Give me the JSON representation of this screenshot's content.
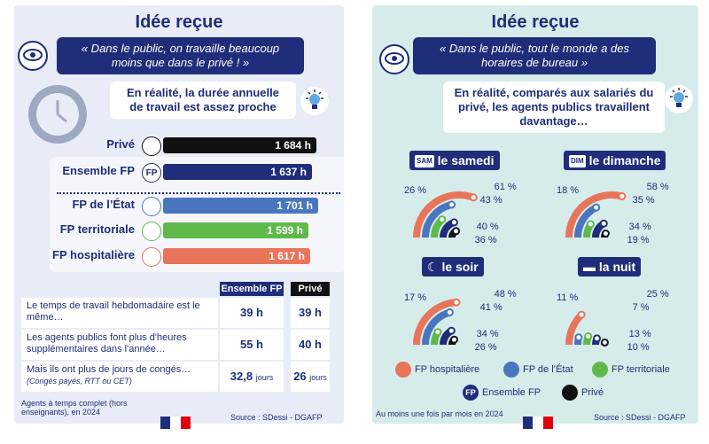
{
  "colors": {
    "navy": "#1f2d7a",
    "hospitaliere": "#e8755a",
    "etat": "#4a76c0",
    "territoriale": "#5fb94a",
    "ensemble": "#1f2d7a",
    "prive": "#111111"
  },
  "left": {
    "title": "Idée reçue",
    "quote": "« Dans le public, on travaille beaucoup moins que dans le privé ! »",
    "reality": "En réalité, la durée annuelle de travail est assez proche",
    "bars": [
      {
        "label": "Privé",
        "value": "1 684 h",
        "hours": 1684,
        "color": "#111111",
        "icon": "building-icon"
      },
      {
        "label": "Ensemble FP",
        "value": "1 637 h",
        "hours": 1637,
        "color": "#1f2d7a",
        "icon": "fp-badge-icon",
        "icon_text": "FP"
      },
      {
        "label": "FP de l’État",
        "value": "1 701 h",
        "hours": 1701,
        "color": "#4a76c0",
        "icon": "state-building-icon"
      },
      {
        "label": "FP territoriale",
        "value": "1 599 h",
        "hours": 1599,
        "color": "#5fb94a",
        "icon": "france-map-icon"
      },
      {
        "label": "FP hospitalière",
        "value": "1 617 h",
        "hours": 1617,
        "color": "#e8755a",
        "icon": "caduceus-icon"
      }
    ],
    "table": {
      "col_headers": [
        "Ensemble FP",
        "Privé"
      ],
      "rows": [
        {
          "label": "Le temps de travail hebdomadaire est le même…",
          "fp": "39 h",
          "prive": "39 h"
        },
        {
          "label": "Les agents publics font plus d'heures supplémentaires dans l'année…",
          "fp": "55 h",
          "prive": "40 h"
        },
        {
          "label": "Mais ils ont plus de jours de congés…",
          "note": "(Congés payés, RTT ou CET)",
          "fp": "32,8",
          "fp_unit": "jours",
          "prive": "26",
          "prive_unit": "jours"
        }
      ]
    },
    "footnote": "Agents à temps complet (hors enseignants), en 2024",
    "source": "Source : SDessi - DGAFP"
  },
  "right": {
    "title": "Idée reçue",
    "quote": "« Dans le public, tout le monde a des horaires de bureau »",
    "reality": "En réalité, comparés aux salariés du privé, les agents publics travaillent davantage…",
    "footnote": "Au moins une fois par mois en 2024",
    "source": "Source : SDessi - DGAFP",
    "legend": [
      {
        "label": "FP hospitalière",
        "color": "#e8755a",
        "icon": "caduceus-icon"
      },
      {
        "label": "FP de l’État",
        "color": "#4a76c0",
        "icon": "state-building-icon"
      },
      {
        "label": "FP territoriale",
        "color": "#5fb94a",
        "icon": "france-map-icon"
      },
      {
        "label": "Ensemble FP",
        "color": "#1f2d7a",
        "icon": "fp-badge-icon",
        "icon_text": "FP"
      },
      {
        "label": "Privé",
        "color": "#111111",
        "icon": "building-icon"
      }
    ]
  },
  "chart_data": [
    {
      "type": "bar",
      "title": "Durée annuelle de travail",
      "categories": [
        "Privé",
        "Ensemble FP",
        "FP de l’État",
        "FP territoriale",
        "FP hospitalière"
      ],
      "values": [
        1684,
        1637,
        1701,
        1599,
        1617
      ],
      "unit": "h"
    },
    {
      "type": "radial-bar",
      "title": "le samedi",
      "icon_text": "SAM",
      "series": [
        "FP hospitalière",
        "FP de l’État",
        "FP territoriale",
        "Ensemble FP",
        "Privé"
      ],
      "values": [
        61,
        43,
        26,
        40,
        36
      ],
      "labels": [
        "61 %",
        "43 %",
        "26 %",
        "40 %",
        "36 %"
      ],
      "max": 100
    },
    {
      "type": "radial-bar",
      "title": "le dimanche",
      "icon_text": "DIM",
      "series": [
        "FP hospitalière",
        "FP de l’État",
        "FP territoriale",
        "Ensemble FP",
        "Privé"
      ],
      "values": [
        58,
        35,
        18,
        34,
        19
      ],
      "labels": [
        "58 %",
        "35 %",
        "18 %",
        "34 %",
        "19 %"
      ],
      "max": 100
    },
    {
      "type": "radial-bar",
      "title": "le soir",
      "series": [
        "FP hospitalière",
        "FP de l’État",
        "FP territoriale",
        "Ensemble FP",
        "Privé"
      ],
      "values": [
        48,
        41,
        17,
        34,
        26
      ],
      "labels": [
        "48 %",
        "41 %",
        "17 %",
        "34 %",
        "26 %"
      ],
      "max": 100
    },
    {
      "type": "radial-bar",
      "title": "la nuit",
      "series": [
        "FP hospitalière",
        "FP de l’État",
        "FP territoriale",
        "Ensemble FP",
        "Privé"
      ],
      "values": [
        25,
        7,
        11,
        13,
        10
      ],
      "labels": [
        "25 %",
        "7 %",
        "11 %",
        "13 %",
        "10 %"
      ],
      "max": 100
    }
  ]
}
